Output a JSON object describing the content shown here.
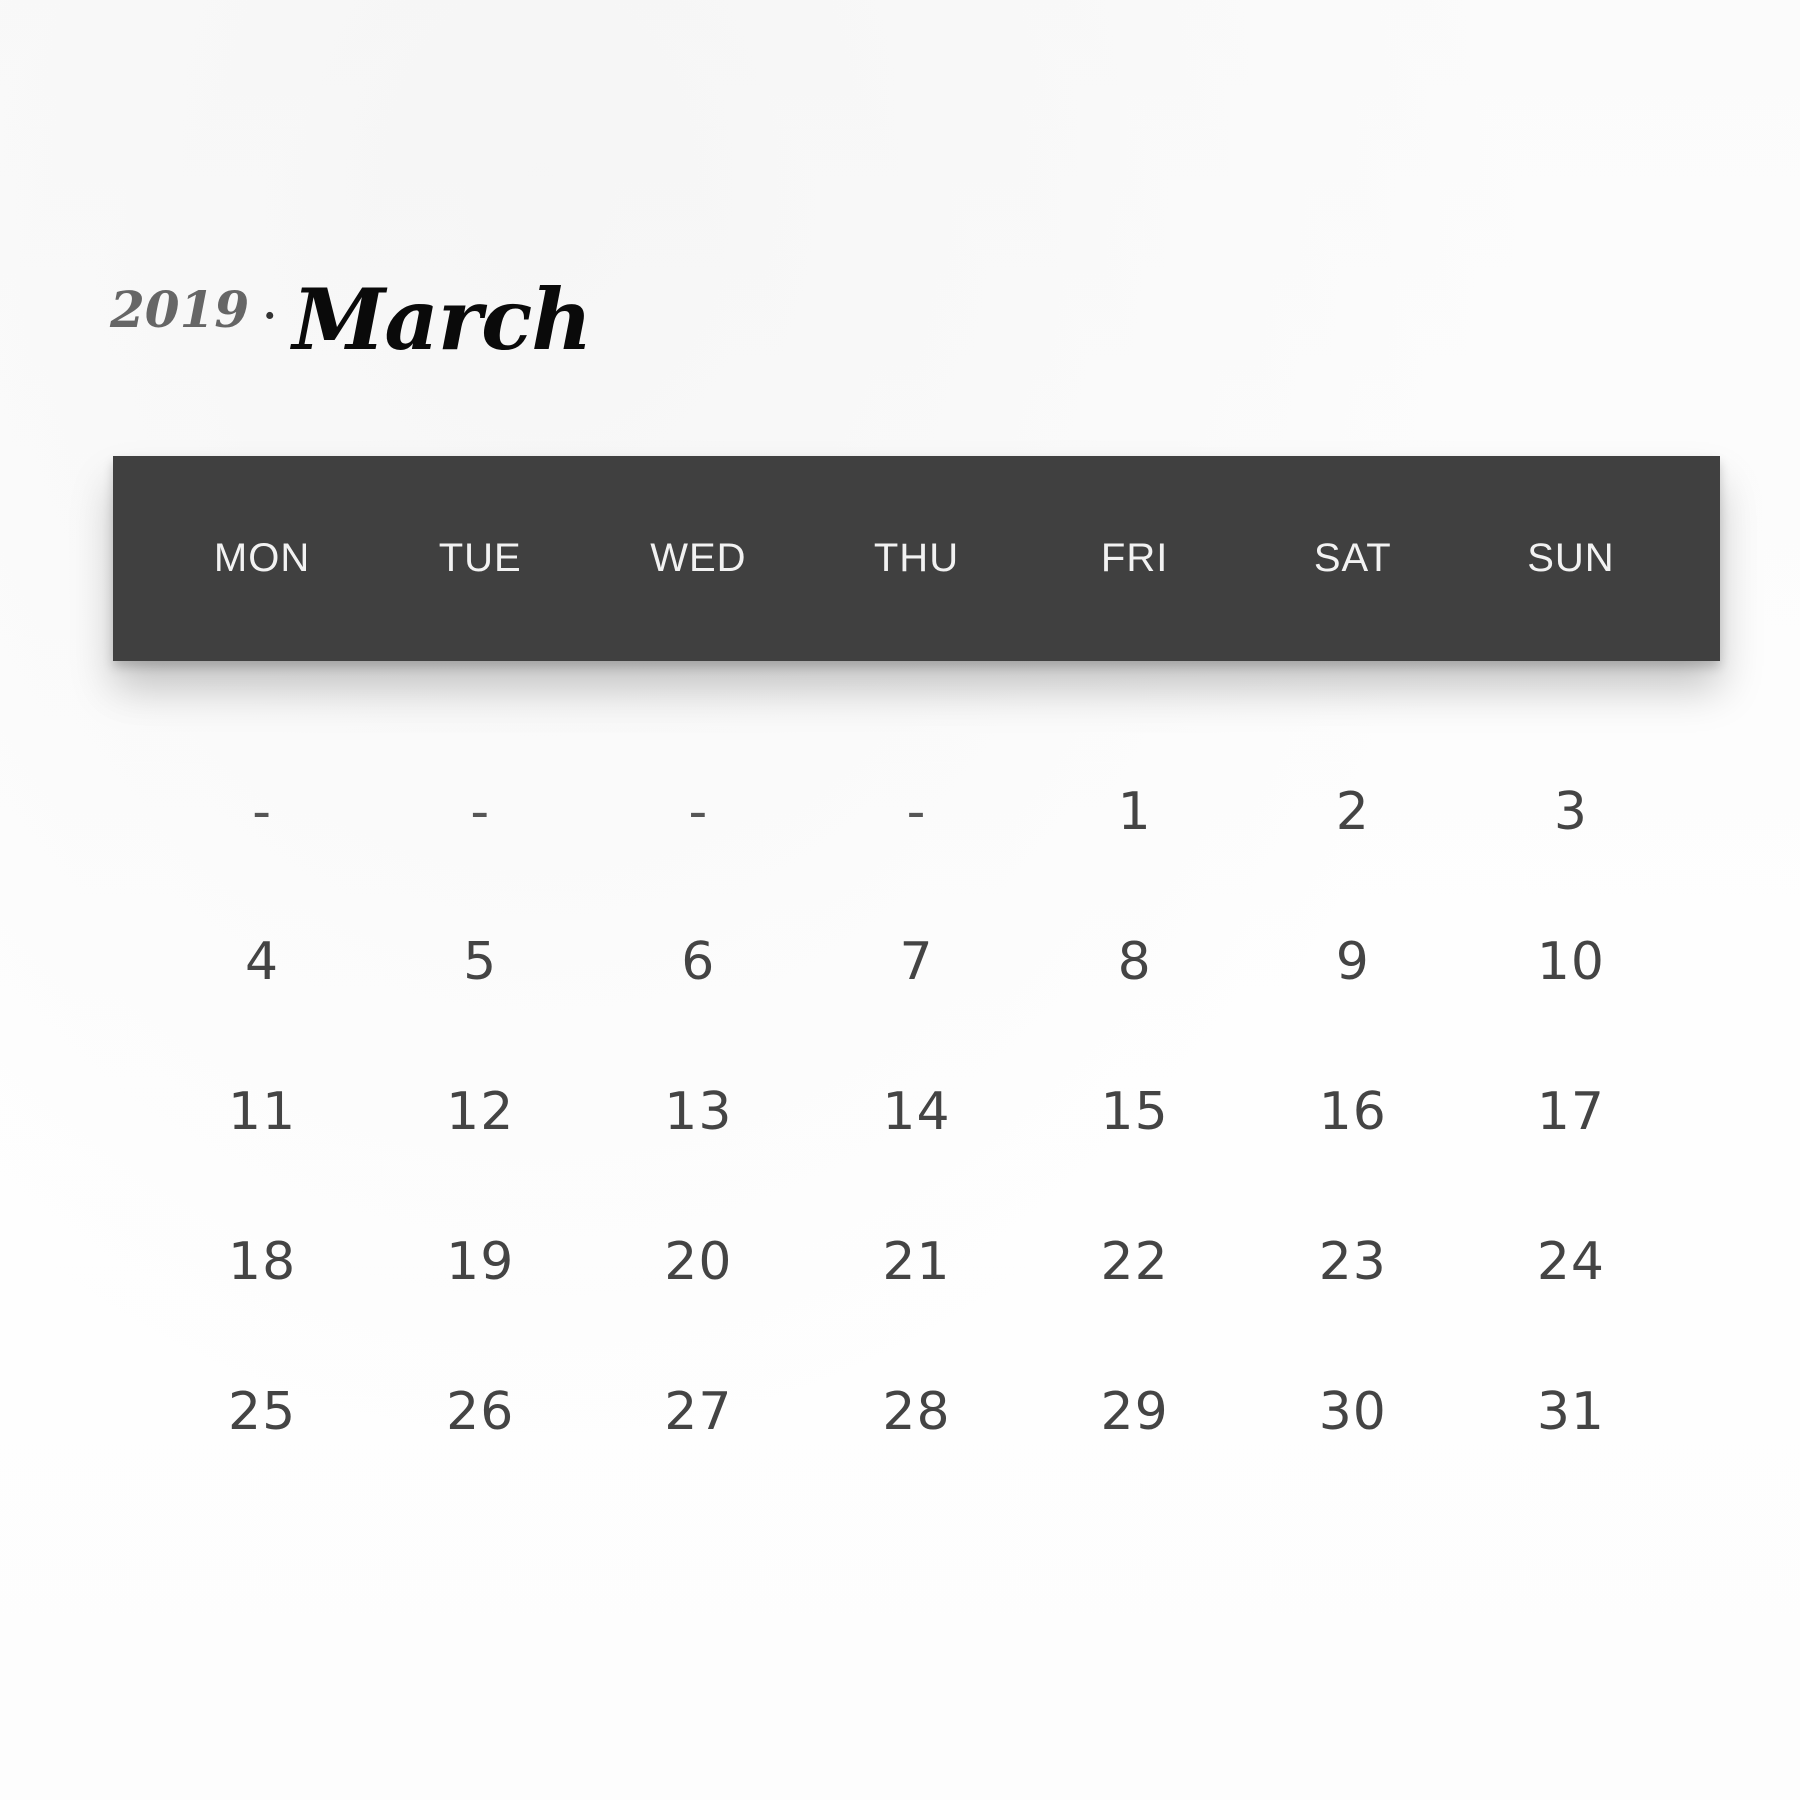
{
  "header": {
    "year": "2019",
    "separator": "·",
    "month": "March"
  },
  "weekdays": [
    "MON",
    "TUE",
    "WED",
    "THU",
    "FRI",
    "SAT",
    "SUN"
  ],
  "weeks": [
    [
      "-",
      "-",
      "-",
      "-",
      "1",
      "2",
      "3"
    ],
    [
      "4",
      "5",
      "6",
      "7",
      "8",
      "9",
      "10"
    ],
    [
      "11",
      "12",
      "13",
      "14",
      "15",
      "16",
      "17"
    ],
    [
      "18",
      "19",
      "20",
      "21",
      "22",
      "23",
      "24"
    ],
    [
      "25",
      "26",
      "27",
      "28",
      "29",
      "30",
      "31"
    ]
  ],
  "colors": {
    "header_bar": "#404040",
    "weekday_text": "#f2f2f2",
    "day_text": "#444444",
    "month_text": "#0a0a0a",
    "year_text": "#666666",
    "background": "#fdfdfd"
  }
}
